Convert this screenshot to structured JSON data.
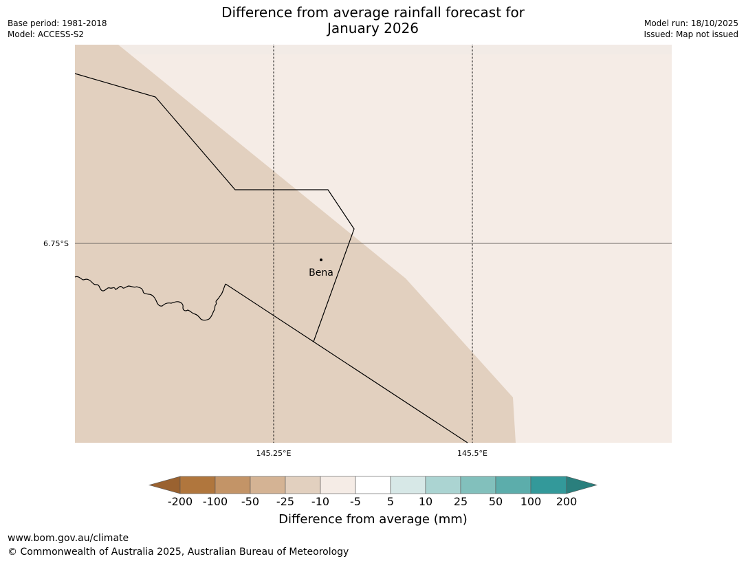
{
  "header": {
    "title_line1": "Difference from average rainfall forecast for",
    "title_line2": "January 2026",
    "base_period": "Base period: 1981-2018",
    "model": "Model: ACCESS-S2",
    "model_run": "Model run: 18/10/2025",
    "issued": "Issued: Map not issued"
  },
  "map": {
    "lat_label": "6.75°S",
    "lon_labels": [
      "145.25°E",
      "145.5°E"
    ],
    "place_name": "Bena",
    "colors": {
      "drier": "#e2d0bf",
      "near_average": "#f5ece6"
    }
  },
  "colorbar": {
    "title": "Difference from average (mm)",
    "tick_labels": [
      "-200",
      "-100",
      "-50",
      "-25",
      "-10",
      "-5",
      "5",
      "10",
      "25",
      "50",
      "100",
      "200"
    ],
    "colors": [
      "#9a6230",
      "#b0763d",
      "#c39467",
      "#d4b394",
      "#e2d0bf",
      "#f5ece6",
      "#ffffff",
      "#d7e8e7",
      "#abd4d2",
      "#82c0bc",
      "#5cadab",
      "#33999a",
      "#2a7f7d"
    ]
  },
  "footer": {
    "url": "www.bom.gov.au/climate",
    "copyright": "© Commonwealth of Australia 2025, Australian Bureau of Meteorology"
  }
}
